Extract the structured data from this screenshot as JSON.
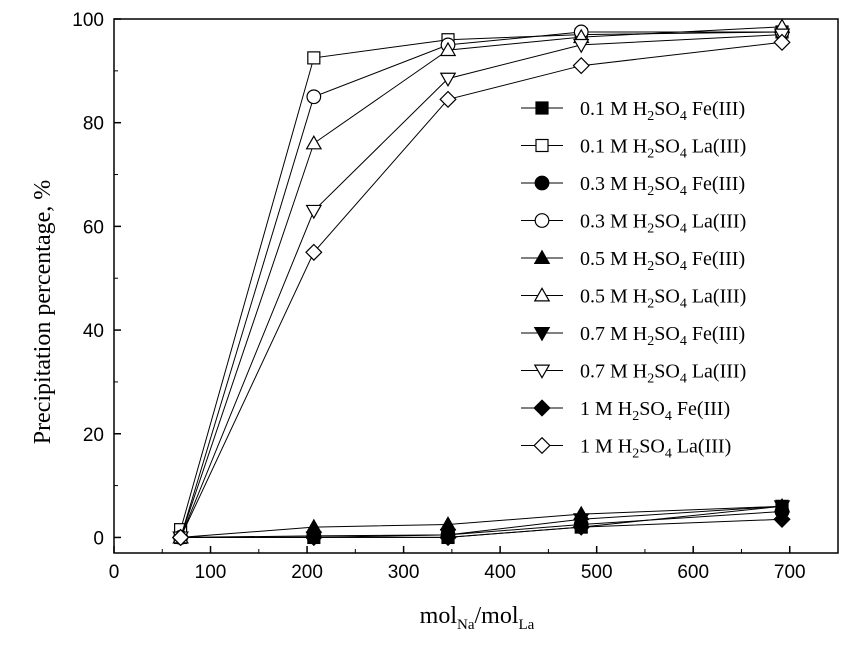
{
  "chart_data": {
    "type": "line",
    "title": "",
    "xlabel": {
      "base": "mol",
      "sub1": "Na",
      "mid": "/mol",
      "sub2": "La"
    },
    "ylabel": "Precipitation percentage, %",
    "xlim": [
      0,
      750
    ],
    "ylim": [
      -3,
      100
    ],
    "xticks": [
      0,
      100,
      200,
      300,
      400,
      500,
      600,
      700
    ],
    "yticks": [
      0,
      20,
      40,
      60,
      80,
      100
    ],
    "grid": false,
    "legend_position": "right",
    "x": [
      69,
      207,
      346,
      484,
      692
    ],
    "series": [
      {
        "id": "s1",
        "conc": "0.1 M",
        "ion": "Fe(III)",
        "marker": "square",
        "filled": true,
        "values": [
          0,
          0,
          0,
          2,
          6
        ]
      },
      {
        "id": "s2",
        "conc": "0.1 M",
        "ion": "La(III)",
        "marker": "square",
        "filled": false,
        "values": [
          1.5,
          92.5,
          96,
          97,
          97.5
        ]
      },
      {
        "id": "s3",
        "conc": "0.3 M",
        "ion": "Fe(III)",
        "marker": "circle",
        "filled": true,
        "values": [
          0,
          0.3,
          0.5,
          2.5,
          5
        ]
      },
      {
        "id": "s4",
        "conc": "0.3 M",
        "ion": "La(III)",
        "marker": "circle",
        "filled": false,
        "values": [
          0,
          85,
          95,
          97.5,
          97.5
        ]
      },
      {
        "id": "s5",
        "conc": "0.5 M",
        "ion": "Fe(III)",
        "marker": "triangle-up",
        "filled": true,
        "values": [
          0,
          2,
          2.5,
          4.5,
          6
        ]
      },
      {
        "id": "s6",
        "conc": "0.5 M",
        "ion": "La(III)",
        "marker": "triangle-up",
        "filled": false,
        "values": [
          0,
          76,
          94,
          96.5,
          98.5
        ]
      },
      {
        "id": "s7",
        "conc": "0.7 M",
        "ion": "Fe(III)",
        "marker": "triangle-down",
        "filled": true,
        "values": [
          0,
          0,
          0.5,
          3.5,
          6
        ]
      },
      {
        "id": "s8",
        "conc": "0.7 M",
        "ion": "La(III)",
        "marker": "triangle-down",
        "filled": false,
        "values": [
          0,
          63,
          88.5,
          95,
          97
        ]
      },
      {
        "id": "s9",
        "conc": "1 M",
        "ion": "Fe(III)",
        "marker": "diamond",
        "filled": true,
        "values": [
          0,
          0,
          0,
          2,
          3.5
        ]
      },
      {
        "id": "s10",
        "conc": "1 M",
        "ion": "La(III)",
        "marker": "diamond",
        "filled": false,
        "values": [
          0,
          55,
          84.5,
          91,
          95.5
        ]
      }
    ],
    "acid": {
      "base": "H",
      "sub1": "2",
      "mid": "SO",
      "sub2": "4"
    }
  }
}
